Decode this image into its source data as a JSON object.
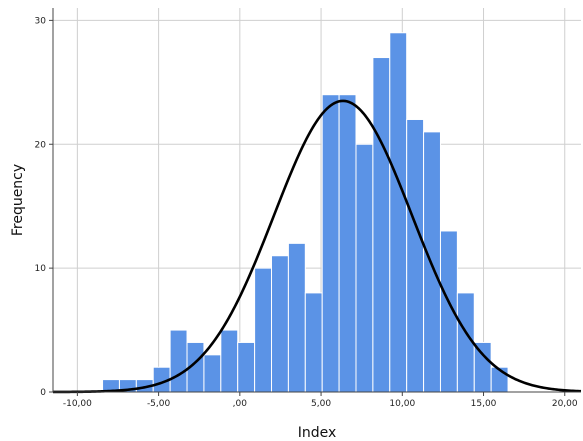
{
  "chart_data": {
    "type": "bar",
    "title": "",
    "xlabel": "Index",
    "ylabel": "Frequency",
    "xlim": [
      -11.5,
      21
    ],
    "ylim": [
      0,
      31
    ],
    "grid": true,
    "x_ticks": [
      {
        "value": -10,
        "label": "-10,00"
      },
      {
        "value": -5,
        "label": "-5,00"
      },
      {
        "value": 0,
        "label": ",00"
      },
      {
        "value": 5,
        "label": "5,00"
      },
      {
        "value": 10,
        "label": "10,00"
      },
      {
        "value": 15,
        "label": "15,00"
      },
      {
        "value": 20,
        "label": "20,00"
      }
    ],
    "y_ticks": [
      {
        "value": 0,
        "label": "0"
      },
      {
        "value": 10,
        "label": "10"
      },
      {
        "value": 20,
        "label": "20"
      },
      {
        "value": 30,
        "label": "30"
      }
    ],
    "bin_width": 1.04,
    "bins": [
      {
        "x0": -8.45,
        "count": 1
      },
      {
        "x0": -7.41,
        "count": 1
      },
      {
        "x0": -6.37,
        "count": 1
      },
      {
        "x0": -5.33,
        "count": 2
      },
      {
        "x0": -4.29,
        "count": 5
      },
      {
        "x0": -3.25,
        "count": 4
      },
      {
        "x0": -2.21,
        "count": 3
      },
      {
        "x0": -1.17,
        "count": 5
      },
      {
        "x0": -0.13,
        "count": 4
      },
      {
        "x0": 0.91,
        "count": 10
      },
      {
        "x0": 1.95,
        "count": 11
      },
      {
        "x0": 2.99,
        "count": 12
      },
      {
        "x0": 4.03,
        "count": 8
      },
      {
        "x0": 5.07,
        "count": 24
      },
      {
        "x0": 6.11,
        "count": 24
      },
      {
        "x0": 7.15,
        "count": 20
      },
      {
        "x0": 8.19,
        "count": 27
      },
      {
        "x0": 9.23,
        "count": 29
      },
      {
        "x0": 10.27,
        "count": 22
      },
      {
        "x0": 11.31,
        "count": 21
      },
      {
        "x0": 12.35,
        "count": 13
      },
      {
        "x0": 13.39,
        "count": 8
      },
      {
        "x0": 14.43,
        "count": 4
      },
      {
        "x0": 15.47,
        "count": 2
      }
    ],
    "normal_curve": {
      "mean": 6.35,
      "sd": 4.25,
      "peak": 23.5
    },
    "colors": {
      "bar": "#5b93e6",
      "bar_edge": "#ffffff",
      "curve": "#000000",
      "grid": "#cfcfcf",
      "axis": "#444444"
    }
  }
}
